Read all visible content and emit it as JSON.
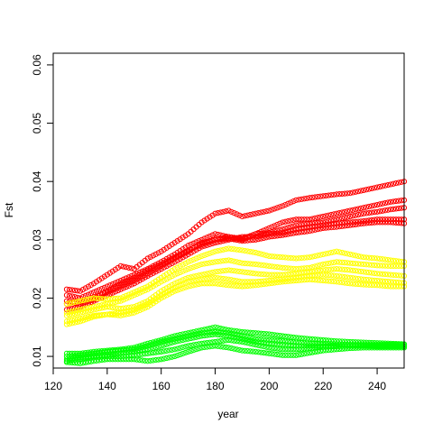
{
  "chart_data": {
    "type": "scatter",
    "title": "",
    "xlabel": "year",
    "ylabel": "Fst",
    "xlim": [
      120,
      250
    ],
    "ylim": [
      0.008,
      0.062
    ],
    "xticks": [
      120,
      140,
      160,
      180,
      200,
      220,
      240
    ],
    "yticks": [
      0.01,
      0.02,
      0.03,
      0.04,
      0.05,
      0.06
    ],
    "xtick_labels": [
      "120",
      "140",
      "160",
      "180",
      "200",
      "220",
      "240"
    ],
    "ytick_labels": [
      "0.01",
      "0.02",
      "0.03",
      "0.04",
      "0.05",
      "0.06"
    ],
    "grid": false,
    "marker": "open-circle",
    "x": [
      125,
      130,
      135,
      140,
      145,
      150,
      155,
      160,
      165,
      170,
      175,
      180,
      185,
      190,
      195,
      200,
      205,
      210,
      215,
      220,
      225,
      230,
      235,
      240,
      245,
      250
    ],
    "series": [
      {
        "color": "#ff0000",
        "values": [
          0.0215,
          0.0212,
          0.0225,
          0.024,
          0.0255,
          0.025,
          0.0268,
          0.028,
          0.0295,
          0.031,
          0.033,
          0.0345,
          0.035,
          0.034,
          0.0345,
          0.035,
          0.0358,
          0.0368,
          0.0372,
          0.0375,
          0.0378,
          0.038,
          0.0385,
          0.039,
          0.0395,
          0.04
        ]
      },
      {
        "color": "#ff0000",
        "values": [
          0.0205,
          0.02,
          0.021,
          0.022,
          0.023,
          0.024,
          0.025,
          0.0262,
          0.0275,
          0.029,
          0.03,
          0.031,
          0.0305,
          0.0302,
          0.031,
          0.032,
          0.033,
          0.0335,
          0.0335,
          0.034,
          0.0345,
          0.035,
          0.0355,
          0.036,
          0.0365,
          0.0368
        ]
      },
      {
        "color": "#ff0000",
        "values": [
          0.019,
          0.0195,
          0.02,
          0.021,
          0.022,
          0.023,
          0.0242,
          0.0255,
          0.0268,
          0.028,
          0.0295,
          0.03,
          0.0305,
          0.03,
          0.031,
          0.0312,
          0.0318,
          0.0325,
          0.0328,
          0.033,
          0.0335,
          0.034,
          0.0345,
          0.0348,
          0.0352,
          0.0355
        ]
      },
      {
        "color": "#ff0000",
        "values": [
          0.018,
          0.0185,
          0.0195,
          0.0205,
          0.0215,
          0.0225,
          0.0238,
          0.025,
          0.0262,
          0.0275,
          0.0288,
          0.0295,
          0.03,
          0.0305,
          0.0305,
          0.031,
          0.0312,
          0.0318,
          0.0322,
          0.0325,
          0.0328,
          0.033,
          0.0332,
          0.0335,
          0.0335,
          0.0335
        ]
      },
      {
        "color": "#ff0000",
        "values": [
          0.0195,
          0.019,
          0.0198,
          0.0212,
          0.0225,
          0.0235,
          0.0248,
          0.0258,
          0.027,
          0.0282,
          0.0292,
          0.03,
          0.0302,
          0.0298,
          0.03,
          0.0305,
          0.0308,
          0.0312,
          0.0315,
          0.032,
          0.0322,
          0.0325,
          0.0328,
          0.033,
          0.033,
          0.0328
        ]
      },
      {
        "color": "#ffff00",
        "values": [
          0.019,
          0.0195,
          0.02,
          0.0198,
          0.02,
          0.021,
          0.022,
          0.0235,
          0.025,
          0.0262,
          0.0272,
          0.028,
          0.0285,
          0.0282,
          0.0278,
          0.0272,
          0.027,
          0.0268,
          0.027,
          0.0275,
          0.028,
          0.0275,
          0.027,
          0.0268,
          0.0265,
          0.0262
        ]
      },
      {
        "color": "#ffff00",
        "values": [
          0.0175,
          0.018,
          0.0185,
          0.019,
          0.0195,
          0.0205,
          0.0215,
          0.0228,
          0.024,
          0.025,
          0.0258,
          0.0262,
          0.0265,
          0.026,
          0.0258,
          0.0255,
          0.0252,
          0.025,
          0.0252,
          0.0258,
          0.0262,
          0.026,
          0.0258,
          0.0256,
          0.0255,
          0.0255
        ]
      },
      {
        "color": "#ffff00",
        "values": [
          0.017,
          0.0175,
          0.018,
          0.0185,
          0.0182,
          0.0185,
          0.0195,
          0.0212,
          0.0225,
          0.0235,
          0.024,
          0.0245,
          0.0248,
          0.0245,
          0.0242,
          0.024,
          0.024,
          0.0242,
          0.0245,
          0.0248,
          0.025,
          0.0248,
          0.0245,
          0.0242,
          0.024,
          0.0238
        ]
      },
      {
        "color": "#ffff00",
        "values": [
          0.016,
          0.0165,
          0.017,
          0.0172,
          0.0175,
          0.018,
          0.019,
          0.0205,
          0.0218,
          0.0228,
          0.0232,
          0.0235,
          0.0232,
          0.0228,
          0.0228,
          0.023,
          0.0232,
          0.0235,
          0.0238,
          0.024,
          0.0238,
          0.0235,
          0.0232,
          0.023,
          0.0228,
          0.0226
        ]
      },
      {
        "color": "#ffff00",
        "values": [
          0.0155,
          0.016,
          0.0168,
          0.0172,
          0.017,
          0.0175,
          0.0185,
          0.02,
          0.0212,
          0.022,
          0.0225,
          0.0225,
          0.0222,
          0.022,
          0.0222,
          0.0225,
          0.0228,
          0.023,
          0.0232,
          0.023,
          0.0228,
          0.0225,
          0.0223,
          0.0222,
          0.022,
          0.022
        ]
      },
      {
        "color": "#00ff00",
        "values": [
          0.0105,
          0.0105,
          0.0108,
          0.011,
          0.0112,
          0.0115,
          0.0122,
          0.0128,
          0.0135,
          0.014,
          0.0145,
          0.015,
          0.0145,
          0.0142,
          0.014,
          0.0138,
          0.0135,
          0.0132,
          0.013,
          0.0128,
          0.0126,
          0.0125,
          0.0124,
          0.0123,
          0.0122,
          0.0121
        ]
      },
      {
        "color": "#00ff00",
        "values": [
          0.01,
          0.0102,
          0.0105,
          0.0108,
          0.011,
          0.0112,
          0.0118,
          0.0125,
          0.013,
          0.0135,
          0.014,
          0.0142,
          0.014,
          0.0135,
          0.013,
          0.0128,
          0.0126,
          0.0124,
          0.0122,
          0.0122,
          0.0121,
          0.012,
          0.012,
          0.012,
          0.012,
          0.012
        ]
      },
      {
        "color": "#00ff00",
        "values": [
          0.0095,
          0.0098,
          0.01,
          0.0102,
          0.0105,
          0.0108,
          0.0112,
          0.0118,
          0.0125,
          0.013,
          0.0135,
          0.0138,
          0.0135,
          0.013,
          0.0125,
          0.0122,
          0.012,
          0.0118,
          0.0118,
          0.0118,
          0.0118,
          0.0118,
          0.0118,
          0.0118,
          0.0118,
          0.0118
        ]
      },
      {
        "color": "#00ff00",
        "values": [
          0.0092,
          0.0095,
          0.0098,
          0.01,
          0.01,
          0.0102,
          0.0105,
          0.0108,
          0.0112,
          0.0118,
          0.0122,
          0.0125,
          0.0128,
          0.0125,
          0.012,
          0.0115,
          0.0112,
          0.0112,
          0.0114,
          0.0116,
          0.0117,
          0.0118,
          0.0118,
          0.0117,
          0.0117,
          0.0117
        ]
      },
      {
        "color": "#00ff00",
        "values": [
          0.009,
          0.0088,
          0.0092,
          0.0095,
          0.0095,
          0.0095,
          0.0092,
          0.0095,
          0.01,
          0.0108,
          0.0115,
          0.0118,
          0.0115,
          0.011,
          0.0108,
          0.0105,
          0.0102,
          0.0102,
          0.0106,
          0.011,
          0.0112,
          0.0114,
          0.0115,
          0.0115,
          0.0115,
          0.0115
        ]
      }
    ]
  }
}
